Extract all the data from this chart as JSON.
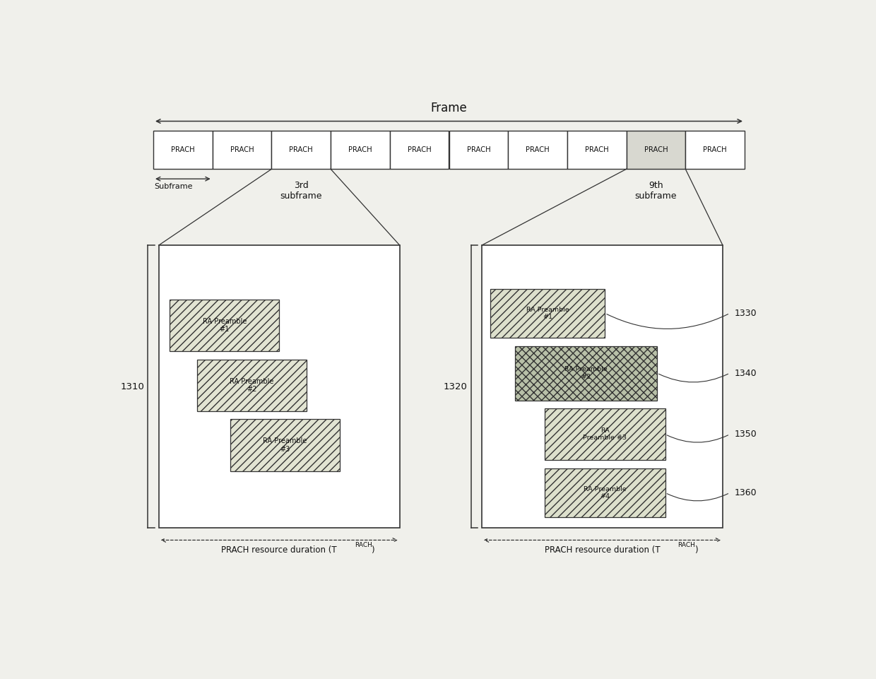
{
  "bg_color": "#f0f0eb",
  "frame_label": "Frame",
  "subframe_label": "Subframe",
  "subframe_3_label": "3rd\nsubframe",
  "subframe_9_label": "9th\nsubframe",
  "prach_cells": 10,
  "prach_label": "PRACH",
  "left_box_label": "1310",
  "right_box_label": "1320",
  "prach_duration_label": "PRACH resource duration (T",
  "prach_duration_subscript": "RACH",
  "prach_duration_suffix": ")",
  "left_preambles": [
    {
      "label": "RA Preamble\n#1",
      "hatch": "///"
    },
    {
      "label": "RA Preamble\n#2",
      "hatch": "///"
    },
    {
      "label": "RA Preamble\n#3",
      "hatch": "///"
    }
  ],
  "right_preambles": [
    {
      "label": "RA Preamble\n#1",
      "hatch": "///",
      "ref": "1330"
    },
    {
      "label": "RA Preamble\n#2",
      "hatch": "xxx",
      "ref": "1340"
    },
    {
      "label": "RA\nPreamble #3",
      "hatch": "///",
      "ref": "1350"
    },
    {
      "label": "RA Preamble\n#4",
      "hatch": "///",
      "ref": "1360"
    }
  ]
}
